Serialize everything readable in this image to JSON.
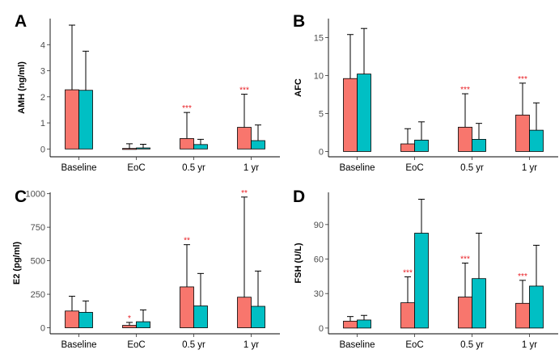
{
  "colors": {
    "baseline_series": "#f8766d",
    "comparison_series": "#00bfc4",
    "significance": "#e8191f"
  },
  "chart_data": [
    {
      "panel": "A",
      "type": "bar",
      "ylabel": "AMH (ng/ml)",
      "categories": [
        "Baseline",
        "EoC",
        "0.5 yr",
        "1 yr"
      ],
      "ylim": [
        -0.3,
        5.0
      ],
      "yticks": [
        0,
        1,
        2,
        3,
        4
      ],
      "ytick_labels": [
        "0",
        "1",
        "2",
        "3",
        "4"
      ],
      "series": [
        {
          "name": "series-1",
          "color": "#f8766d",
          "values": [
            2.27,
            0.02,
            0.4,
            0.83
          ],
          "err_upper": [
            4.75,
            0.2,
            1.4,
            2.1
          ],
          "significance": [
            "",
            "",
            "***",
            "***"
          ]
        },
        {
          "name": "series-2",
          "color": "#00bfc4",
          "values": [
            2.25,
            0.04,
            0.17,
            0.32
          ],
          "err_upper": [
            3.75,
            0.18,
            0.37,
            0.92
          ],
          "significance": [
            "",
            "",
            "",
            ""
          ]
        }
      ]
    },
    {
      "panel": "B",
      "type": "bar",
      "ylabel": "AFC",
      "categories": [
        "Baseline",
        "EoC",
        "0.5 yr",
        "1 yr"
      ],
      "ylim": [
        -0.7,
        17.5
      ],
      "yticks": [
        0,
        5,
        10,
        15
      ],
      "ytick_labels": [
        "0",
        "5",
        "10",
        "15"
      ],
      "series": [
        {
          "name": "series-1",
          "color": "#f8766d",
          "values": [
            9.6,
            1.0,
            3.2,
            4.8
          ],
          "err_upper": [
            15.4,
            3.0,
            7.6,
            9.0
          ],
          "significance": [
            "",
            "",
            "***",
            "***"
          ]
        },
        {
          "name": "series-2",
          "color": "#00bfc4",
          "values": [
            10.2,
            1.5,
            1.6,
            2.8
          ],
          "err_upper": [
            16.2,
            3.9,
            3.7,
            6.4
          ],
          "significance": [
            "",
            "",
            "",
            ""
          ]
        }
      ]
    },
    {
      "panel": "C",
      "type": "bar",
      "ylabel": "E2 (pg/ml)",
      "categories": [
        "Baseline",
        "EoC",
        "0.5 yr",
        "1 yr"
      ],
      "ylim": [
        -45,
        1010
      ],
      "yticks": [
        0,
        250,
        500,
        750,
        1000
      ],
      "ytick_labels": [
        "0",
        "250",
        "500",
        "750",
        "1000"
      ],
      "series": [
        {
          "name": "series-1",
          "color": "#f8766d",
          "values": [
            125,
            18,
            305,
            228
          ],
          "err_upper": [
            235,
            40,
            620,
            975
          ],
          "significance": [
            "",
            "*",
            "**",
            "**"
          ]
        },
        {
          "name": "series-2",
          "color": "#00bfc4",
          "values": [
            115,
            45,
            163,
            160
          ],
          "err_upper": [
            200,
            133,
            405,
            423
          ],
          "significance": [
            "",
            "",
            "",
            ""
          ]
        }
      ]
    },
    {
      "panel": "D",
      "type": "bar",
      "ylabel": "FSH (U/L)",
      "categories": [
        "Baseline",
        "EoC",
        "0.5 yr",
        "1 yr"
      ],
      "ylim": [
        -5,
        118
      ],
      "yticks": [
        0,
        30,
        60,
        90
      ],
      "ytick_labels": [
        "0",
        "30",
        "60",
        "90"
      ],
      "series": [
        {
          "name": "series-1",
          "color": "#f8766d",
          "values": [
            6.0,
            22.0,
            27.0,
            21.5
          ],
          "err_upper": [
            10.0,
            44.5,
            56.5,
            41.5
          ],
          "significance": [
            "",
            "***",
            "***",
            "***"
          ]
        },
        {
          "name": "series-2",
          "color": "#00bfc4",
          "values": [
            7.0,
            82.5,
            43.0,
            36.5
          ],
          "err_upper": [
            11.0,
            112.0,
            82.5,
            72.0
          ],
          "significance": [
            "",
            "",
            "",
            ""
          ]
        }
      ]
    }
  ]
}
